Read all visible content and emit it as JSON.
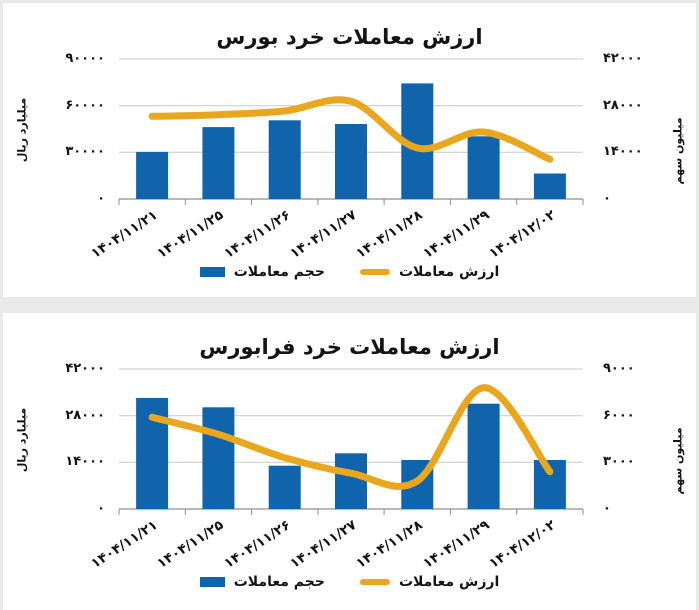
{
  "page": {
    "background_color": "#e9e9e9",
    "panel_color": "#ffffff"
  },
  "colors": {
    "bar": "#1064ab",
    "line": "#e9a71f",
    "grid": "#c9c9c9",
    "axis_line": "#8f8f8f",
    "text": "#141414"
  },
  "legend": {
    "bar_label": "حجم معاملات",
    "line_label": "ارزش معاملات"
  },
  "chart_data": [
    {
      "type": "bar",
      "subtype": "combo-bar-line",
      "title": "ارزش معاملات خرد بورس",
      "categories": [
        "۱۴۰۴/۱۱/۲۱",
        "۱۴۰۴/۱۱/۲۵",
        "۱۴۰۴/۱۱/۲۶",
        "۱۴۰۴/۱۱/۲۷",
        "۱۴۰۴/۱۱/۲۸",
        "۱۴۰۴/۱۱/۲۹",
        "۱۴۰۴/۱۲/۰۲"
      ],
      "categories_latin": [
        "1404/11/21",
        "1404/11/25",
        "1404/11/26",
        "1404/11/27",
        "1404/11/28",
        "1404/11/29",
        "1404/12/02"
      ],
      "series": [
        {
          "name": "حجم معاملات",
          "type": "bar",
          "axis": "left",
          "values": [
            30300,
            46200,
            50600,
            48200,
            74300,
            40300,
            16400
          ]
        },
        {
          "name": "ارزش معاملات",
          "type": "line",
          "axis": "right",
          "values": [
            24800,
            25300,
            26400,
            29300,
            15300,
            20100,
            11900
          ]
        }
      ],
      "left_axis": {
        "label": "میلیارد ریال",
        "range": [
          0,
          90000
        ],
        "tick_values": [
          90000,
          60000,
          30000,
          0
        ],
        "tick_labels": [
          "۹۰۰۰۰",
          "۶۰۰۰۰",
          "۳۰۰۰۰",
          "۰"
        ]
      },
      "right_axis": {
        "label": "میلیون سهم",
        "range": [
          0,
          42000
        ],
        "tick_values": [
          42000,
          28000,
          14000,
          0
        ],
        "tick_labels": [
          "۴۲۰۰۰",
          "۲۸۰۰۰",
          "۱۴۰۰۰",
          "۰"
        ]
      },
      "grid": true,
      "legend_position": "bottom"
    },
    {
      "type": "bar",
      "subtype": "combo-bar-line",
      "title": "ارزش معاملات خرد فرابورس",
      "categories": [
        "۱۴۰۴/۱۱/۲۱",
        "۱۴۰۴/۱۱/۲۵",
        "۱۴۰۴/۱۱/۲۶",
        "۱۴۰۴/۱۱/۲۷",
        "۱۴۰۴/۱۱/۲۸",
        "۱۴۰۴/۱۱/۲۹",
        "۱۴۰۴/۱۲/۰۲"
      ],
      "categories_latin": [
        "1404/11/21",
        "1404/11/25",
        "1404/11/26",
        "1404/11/27",
        "1404/11/28",
        "1404/11/29",
        "1404/12/02"
      ],
      "series": [
        {
          "name": "حجم معاملات",
          "type": "bar",
          "axis": "left",
          "values": [
            33300,
            30500,
            13000,
            16700,
            14700,
            31600,
            14700
          ]
        },
        {
          "name": "ارزش معاملات",
          "type": "line",
          "axis": "right",
          "values": [
            5900,
            4800,
            3300,
            2300,
            1800,
            7800,
            2400
          ]
        }
      ],
      "left_axis": {
        "label": "میلیارد ریال",
        "range": [
          0,
          42000
        ],
        "tick_values": [
          42000,
          28000,
          14000,
          0
        ],
        "tick_labels": [
          "۴۲۰۰۰",
          "۲۸۰۰۰",
          "۱۴۰۰۰",
          "۰"
        ]
      },
      "right_axis": {
        "label": "میلیون سهم",
        "range": [
          0,
          9000
        ],
        "tick_values": [
          9000,
          6000,
          3000,
          0
        ],
        "tick_labels": [
          "۹۰۰۰",
          "۶۰۰۰",
          "۳۰۰۰",
          "۰"
        ]
      },
      "grid": true,
      "legend_position": "bottom"
    }
  ]
}
